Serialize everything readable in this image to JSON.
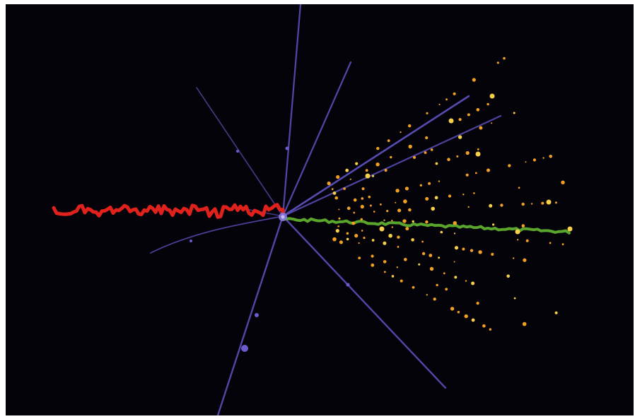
{
  "image": {
    "description_kind": "particle-collision-event-display",
    "background_color": "#04030a",
    "frame_color": "#ffffff"
  },
  "colors": {
    "red_track": "#e0211c",
    "green_track": "#5aa62c",
    "violet_track": "#5b4fb8",
    "orange_hits": "#f2a024",
    "yellow_hits": "#f7d048",
    "vertex": "#8a78e0"
  },
  "elements": {
    "red_track": {
      "icon": "wavy-track"
    },
    "green_track": {
      "icon": "straight-track"
    },
    "violet_tracks": {
      "icon": "thin-line"
    },
    "hit_clusters": {
      "icon": "dots"
    }
  }
}
